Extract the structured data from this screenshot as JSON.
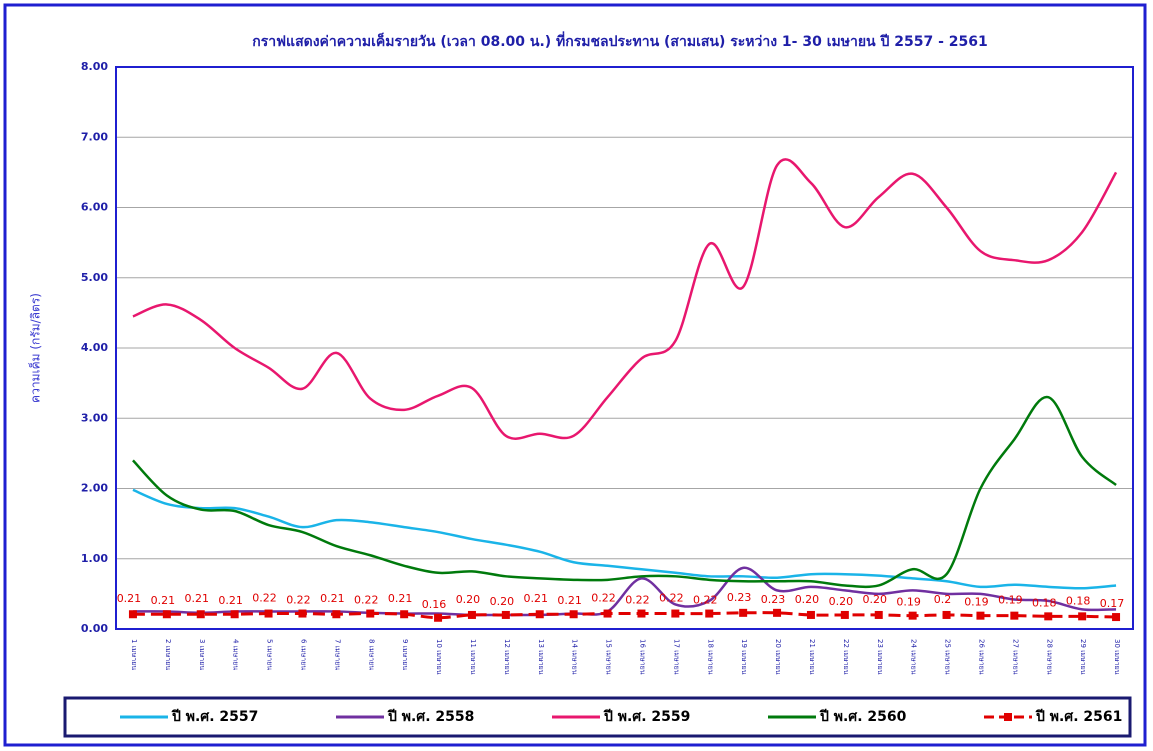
{
  "chart_data": {
    "type": "line",
    "title": "กราฟแสดงค่าความเค็มรายวัน (เวลา 08.00 น.) ที่กรมชลประทาน (สามเสน) ระหว่าง 1- 30 เมษายน ปี 2557 - 2561",
    "y_label": "ความเค็ม (กรัม/ลิตร)",
    "categories": [
      "1 เมษายน",
      "2 เมษายน",
      "3 เมษายน",
      "4 เมษายน",
      "5 เมษายน",
      "6 เมษายน",
      "7 เมษายน",
      "8 เมษายน",
      "9 เมษายน",
      "10 เมษายน",
      "11 เมษายน",
      "12 เมษายน",
      "13 เมษายน",
      "14 เมษายน",
      "15 เมษายน",
      "16 เมษายน",
      "17 เมษายน",
      "18 เมษายน",
      "19 เมษายน",
      "20 เมษายน",
      "21 เมษายน",
      "22 เมษายน",
      "23 เมษายน",
      "24 เมษายน",
      "25 เมษายน",
      "26 เมษายน",
      "27 เมษายน",
      "28 เมษายน",
      "29 เมษายน",
      "30 เมษายน"
    ],
    "ylim": [
      0,
      8
    ],
    "yticks": [
      {
        "value": 0,
        "label": "0.00"
      },
      {
        "value": 1,
        "label": "1.00"
      },
      {
        "value": 2,
        "label": "2.00"
      },
      {
        "value": 3,
        "label": "3.00"
      },
      {
        "value": 4,
        "label": "4.00"
      },
      {
        "value": 5,
        "label": "5.00"
      },
      {
        "value": 6,
        "label": "6.00"
      },
      {
        "value": 7,
        "label": "7.00"
      },
      {
        "value": 8,
        "label": "8.00"
      }
    ],
    "grid": true,
    "legend": "bottom",
    "series": [
      {
        "name": "ปี พ.ศ. 2557",
        "color": "#1ab4e8",
        "values": [
          1.98,
          1.78,
          1.72,
          1.72,
          1.6,
          1.45,
          1.55,
          1.52,
          1.45,
          1.38,
          1.28,
          1.2,
          1.1,
          0.95,
          0.9,
          0.85,
          0.8,
          0.75,
          0.75,
          0.73,
          0.78,
          0.78,
          0.76,
          0.72,
          0.68,
          0.6,
          0.63,
          0.6,
          0.58,
          0.62
        ]
      },
      {
        "name": "ปี พ.ศ. 2558",
        "color": "#7030a0",
        "values": [
          0.25,
          0.25,
          0.23,
          0.25,
          0.25,
          0.25,
          0.25,
          0.23,
          0.22,
          0.22,
          0.2,
          0.2,
          0.2,
          0.22,
          0.25,
          0.72,
          0.35,
          0.4,
          0.87,
          0.55,
          0.6,
          0.55,
          0.5,
          0.55,
          0.5,
          0.5,
          0.42,
          0.4,
          0.28,
          0.28
        ]
      },
      {
        "name": "ปี พ.ศ. 2559",
        "color": "#e8176e",
        "values": [
          4.45,
          4.62,
          4.4,
          4.0,
          3.72,
          3.42,
          3.93,
          3.28,
          3.12,
          3.32,
          3.43,
          2.75,
          2.78,
          2.75,
          3.3,
          3.85,
          4.1,
          5.48,
          4.87,
          6.6,
          6.35,
          5.72,
          6.15,
          6.48,
          6.0,
          5.38,
          5.25,
          5.25,
          5.65,
          6.5
        ]
      },
      {
        "name": "ปี พ.ศ. 2560",
        "color": "#007a0c",
        "values": [
          2.4,
          1.9,
          1.7,
          1.68,
          1.48,
          1.38,
          1.18,
          1.05,
          0.9,
          0.8,
          0.82,
          0.75,
          0.72,
          0.7,
          0.7,
          0.75,
          0.75,
          0.7,
          0.68,
          0.68,
          0.68,
          0.62,
          0.62,
          0.85,
          0.78,
          2.0,
          2.7,
          3.3,
          2.45,
          2.05
        ]
      },
      {
        "name": "ปี พ.ศ. 2561",
        "color": "#e00000",
        "dashed": true,
        "markers": true,
        "values": [
          0.21,
          0.21,
          0.21,
          0.21,
          0.22,
          0.22,
          0.21,
          0.22,
          0.21,
          0.16,
          0.2,
          0.2,
          0.21,
          0.21,
          0.22,
          0.22,
          0.22,
          0.22,
          0.23,
          0.23,
          0.2,
          0.2,
          0.2,
          0.19,
          0.2,
          0.19,
          0.19,
          0.18,
          0.18,
          0.17
        ],
        "value_labels": [
          "0.21",
          "0.21",
          "0.21",
          "0.21",
          "0.22",
          "0.22",
          "0.21",
          "0.22",
          "0.21",
          "0.16",
          "0.20",
          "0.20",
          "0.21",
          "0.21",
          "0.22",
          "0.22",
          "0.22",
          "0.22",
          "0.23",
          "0.23",
          "0.20",
          "0.20",
          "0.20",
          "0.19",
          "0.2",
          "0.19",
          "0.19",
          "0.18",
          "0.18",
          "0.17"
        ]
      }
    ]
  }
}
